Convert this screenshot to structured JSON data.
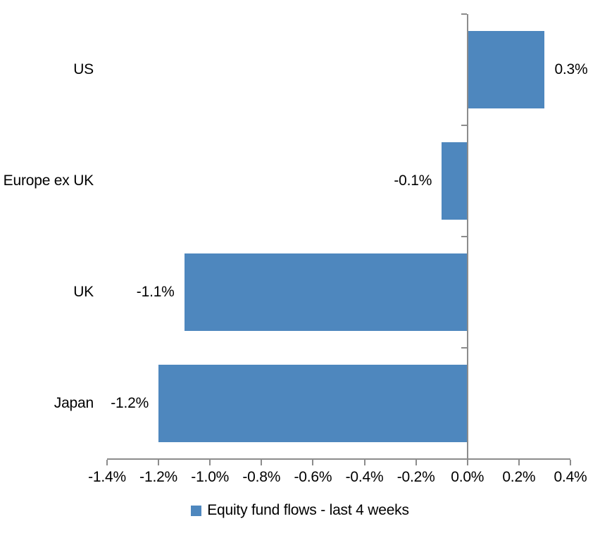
{
  "chart_data": {
    "type": "bar",
    "orientation": "horizontal",
    "title": "",
    "categories": [
      "US",
      "Europe ex UK",
      "UK",
      "Japan"
    ],
    "values": [
      0.3,
      -0.1,
      -1.1,
      -1.2
    ],
    "value_labels": [
      "0.3%",
      "-0.1%",
      "-1.1%",
      "-1.2%"
    ],
    "series": [
      {
        "name": "Equity fund flows - last 4 weeks",
        "values": [
          0.3,
          -0.1,
          -1.1,
          -1.2
        ]
      }
    ],
    "xlabel": "",
    "ylabel": "",
    "xlim": [
      -1.4,
      0.4
    ],
    "x_tick_step": 0.2,
    "x_tick_labels": [
      "-1.4%",
      "-1.2%",
      "-1.0%",
      "-0.8%",
      "-0.6%",
      "-0.4%",
      "-0.2%",
      "0.0%",
      "0.2%",
      "0.4%"
    ],
    "grid": false,
    "data_labels": "outside-end",
    "legend_position": "bottom-center"
  },
  "legend": {
    "label": "Equity fund flows - last 4 weeks"
  },
  "colors": {
    "bar": "#4E87BE",
    "axis": "#8C8C8C",
    "text": "#000000",
    "background": "#FFFFFF"
  }
}
